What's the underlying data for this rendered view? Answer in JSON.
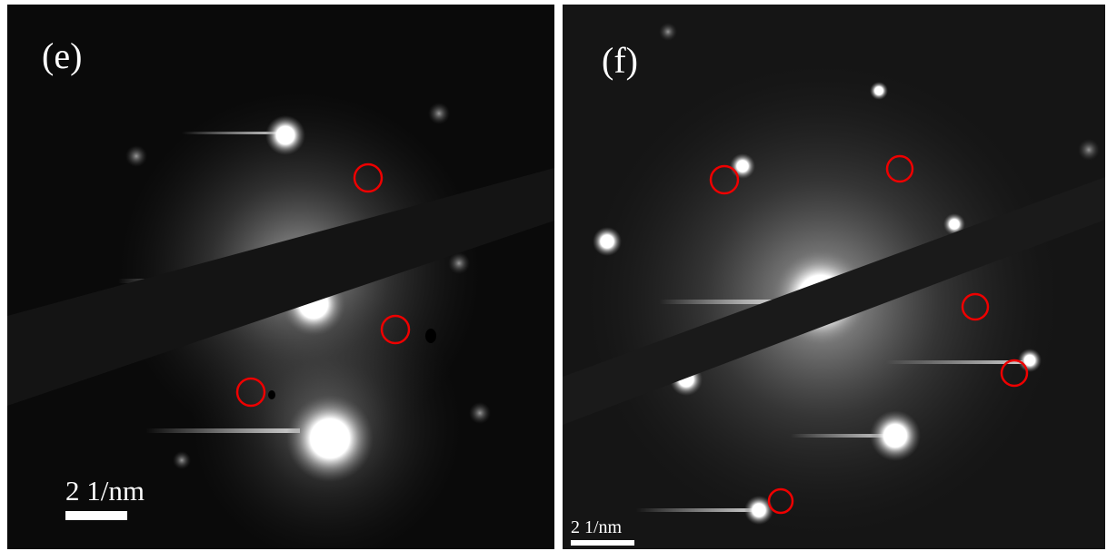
{
  "panels": [
    {
      "label": "(e)",
      "scale_label": "2 1/nm"
    },
    {
      "label": "(f)",
      "scale_label": "2 1/nm"
    }
  ]
}
